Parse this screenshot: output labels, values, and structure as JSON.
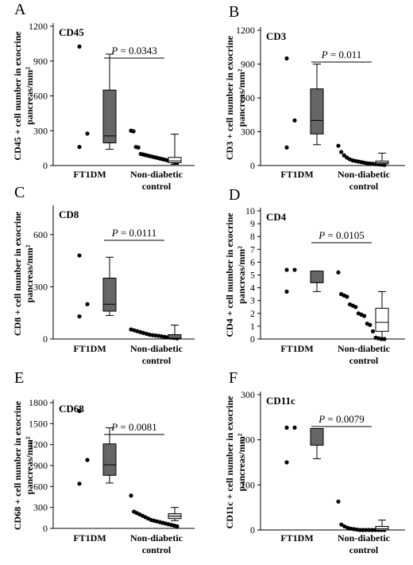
{
  "chart_data": [
    {
      "type": "box",
      "letter": "A",
      "marker": "CD45",
      "ylabel_line1": "CD45 + cell number in exocrine",
      "ylabel_line2": "pancreas/mm²",
      "yticks": [
        "0",
        "300",
        "600",
        "900",
        "1200"
      ],
      "ylim": [
        0,
        1200
      ],
      "categories": [
        "FT1DM",
        "Non-diabetic control"
      ],
      "category_labels": [
        [
          "FT1DM"
        ],
        [
          "Non-diabetic",
          "control"
        ]
      ],
      "p_label": "P",
      "p_value": "= 0.0343",
      "groups": [
        {
          "name": "FT1DM",
          "points": [
            1025,
            275,
            160
          ],
          "box": {
            "min": 140,
            "q1": 195,
            "median": 255,
            "q3": 650,
            "max": 960
          },
          "fill": "#666666"
        },
        {
          "name": "Non-diabetic control",
          "points": [
            300,
            295,
            160,
            155,
            100,
            95,
            90,
            85,
            80,
            75,
            70,
            65,
            60,
            55,
            50,
            45,
            40,
            35,
            30,
            25
          ],
          "box": {
            "min": 10,
            "q1": 25,
            "median": 40,
            "q3": 70,
            "max": 270
          },
          "fill": "#ffffff"
        }
      ]
    },
    {
      "type": "box",
      "letter": "B",
      "marker": "CD3",
      "ylabel_line1": "CD3 + cell number in exocrine",
      "ylabel_line2": "pancreas/mm²",
      "yticks": [
        "0",
        "300",
        "600",
        "900",
        "1200"
      ],
      "ylim": [
        0,
        1200
      ],
      "categories": [
        "FT1DM",
        "Non-diabetic control"
      ],
      "category_labels": [
        [
          "FT1DM"
        ],
        [
          "Non-diabetic",
          "control"
        ]
      ],
      "p_label": "P",
      "p_value": "= 0.011",
      "groups": [
        {
          "name": "FT1DM",
          "points": [
            950,
            400,
            160
          ],
          "box": {
            "min": 185,
            "q1": 280,
            "median": 400,
            "q3": 680,
            "max": 900
          },
          "fill": "#666666"
        },
        {
          "name": "Non-diabetic control",
          "points": [
            175,
            120,
            90,
            70,
            55,
            45,
            40,
            35,
            30,
            25,
            20,
            18,
            15,
            12,
            10,
            8,
            5
          ],
          "box": {
            "min": 5,
            "q1": 15,
            "median": 25,
            "q3": 40,
            "max": 110
          },
          "fill": "#ffffff"
        }
      ]
    },
    {
      "type": "box",
      "letter": "C",
      "marker": "CD8",
      "ylabel_line1": "CD8 + cell number in exocrine",
      "ylabel_line2": "pancreas/mm²",
      "yticks": [
        "0",
        "300",
        "600"
      ],
      "ylim": [
        0,
        750
      ],
      "categories": [
        "FT1DM",
        "Non-diabetic control"
      ],
      "category_labels": [
        [
          "FT1DM"
        ],
        [
          "Non-diabetic",
          "control"
        ]
      ],
      "p_label": "P",
      "p_value": "= 0.0111",
      "groups": [
        {
          "name": "FT1DM",
          "points": [
            480,
            200,
            130
          ],
          "box": {
            "min": 135,
            "q1": 160,
            "median": 200,
            "q3": 350,
            "max": 470
          },
          "fill": "#666666"
        },
        {
          "name": "Non-diabetic control",
          "points": [
            55,
            50,
            45,
            40,
            35,
            30,
            25,
            22,
            20,
            18,
            15,
            12,
            10,
            8,
            6,
            4
          ],
          "box": {
            "min": 0,
            "q1": 2,
            "median": 5,
            "q3": 25,
            "max": 80
          },
          "fill": "#666666"
        }
      ]
    },
    {
      "type": "box",
      "letter": "D",
      "marker": "CD4",
      "ylabel_line1": "CD4 + cell number in exocrine",
      "ylabel_line2": "pancreas/mm²",
      "yticks": [
        "0",
        "1",
        "2",
        "3",
        "4",
        "5",
        "6",
        "7",
        "8",
        "9",
        "10"
      ],
      "ylim": [
        0,
        10
      ],
      "categories": [
        "FT1DM",
        "Non-diabetic control"
      ],
      "category_labels": [
        [
          "FT1DM"
        ],
        [
          "Non-diabetic",
          "control"
        ]
      ],
      "p_label": "P",
      "p_value": "= 0.0105",
      "groups": [
        {
          "name": "FT1DM",
          "points": [
            5.4,
            5.4,
            3.7
          ],
          "box": {
            "min": 3.7,
            "q1": 4.4,
            "median": 4.4,
            "q3": 5.3,
            "max": 5.3
          },
          "fill": "#666666"
        },
        {
          "name": "Non-diabetic control",
          "points": [
            5.2,
            3.5,
            3.4,
            3.3,
            2.7,
            2.6,
            2.5,
            2.0,
            1.9,
            1.8,
            1.2,
            1.1,
            0.6,
            0.1,
            0.05,
            0.0,
            0.0
          ],
          "box": {
            "min": 0.0,
            "q1": 0.6,
            "median": 1.3,
            "q3": 2.4,
            "max": 3.7
          },
          "fill": "#ffffff"
        }
      ]
    },
    {
      "type": "box",
      "letter": "E",
      "marker": "CD68",
      "ylabel_line1": "CD68 + cell number in exocrine",
      "ylabel_line2": "pancreas/mm²",
      "yticks": [
        "0",
        "300",
        "600",
        "900",
        "1200",
        "1500",
        "1800"
      ],
      "ylim": [
        0,
        1800
      ],
      "categories": [
        "FT1DM",
        "Non-diabetic control"
      ],
      "category_labels": [
        [
          "FT1DM"
        ],
        [
          "Non-diabetic",
          "control"
        ]
      ],
      "p_label": "P",
      "p_value": "= 0.0081",
      "groups": [
        {
          "name": "FT1DM",
          "points": [
            1680,
            980,
            640
          ],
          "box": {
            "min": 650,
            "q1": 760,
            "median": 910,
            "q3": 1210,
            "max": 1440
          },
          "fill": "#666666"
        },
        {
          "name": "Non-diabetic control",
          "points": [
            470,
            240,
            220,
            200,
            180,
            160,
            140,
            120,
            110,
            100,
            90,
            80,
            70,
            60,
            50,
            40,
            30
          ],
          "box": {
            "min": 110,
            "q1": 140,
            "median": 175,
            "q3": 210,
            "max": 300
          },
          "fill": "#dddddd"
        }
      ]
    },
    {
      "type": "box",
      "letter": "F",
      "marker": "CD11c",
      "ylabel_line1": "CD11c + cell number in exocrine",
      "ylabel_line2": "pancreas/mm²",
      "yticks": [
        "0",
        "100",
        "200",
        "300"
      ],
      "ylim": [
        0,
        300
      ],
      "categories": [
        "FT1DM",
        "Non-diabetic control"
      ],
      "category_labels": [
        [
          "FT1DM"
        ],
        [
          "Non-diabetic",
          "control"
        ]
      ],
      "p_label": "P",
      "p_value": "= 0.0079",
      "groups": [
        {
          "name": "FT1DM",
          "points": [
            227,
            227,
            150
          ],
          "box": {
            "min": 158,
            "q1": 188,
            "median": 225,
            "q3": 225,
            "max": 225
          },
          "fill": "#666666"
        },
        {
          "name": "Non-diabetic control",
          "points": [
            63,
            12,
            8,
            5,
            3,
            2,
            1,
            0,
            0,
            0,
            0,
            0,
            0,
            0,
            0,
            0
          ],
          "box": {
            "min": 0,
            "q1": 0,
            "median": 3,
            "q3": 8,
            "max": 22
          },
          "fill": "#ffffff"
        }
      ]
    }
  ]
}
